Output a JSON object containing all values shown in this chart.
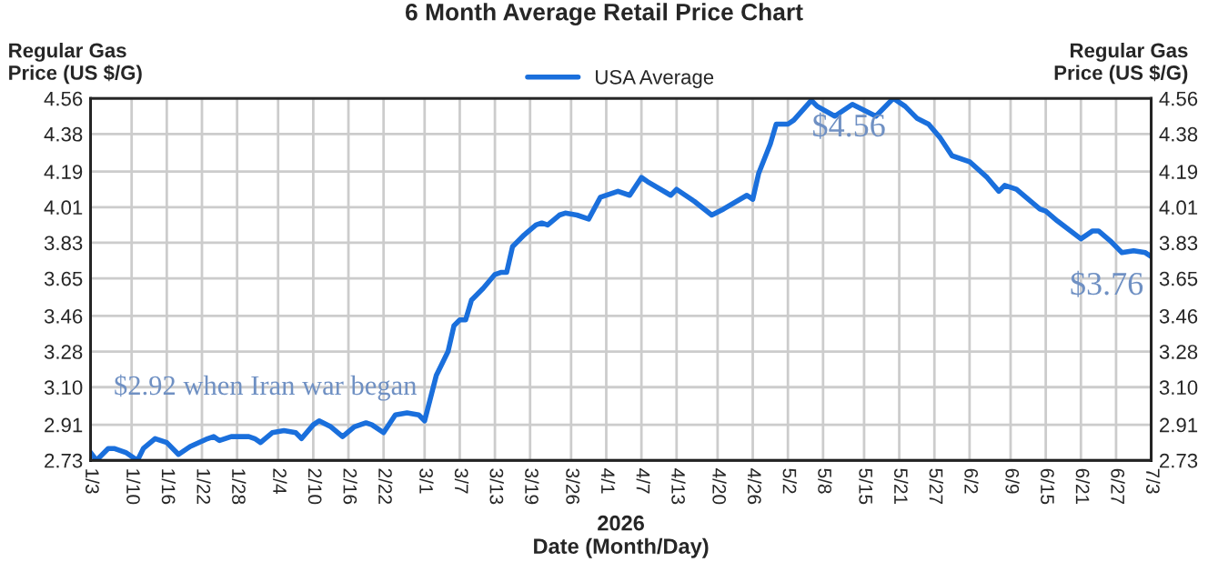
{
  "chart_data": {
    "type": "line",
    "title": "6 Month Average Retail Price Chart",
    "xlabel": "2026\nDate (Month/Day)",
    "ylabel": "Regular Gas\nPrice (US $/G)",
    "y2label": "Regular Gas\nPrice (US $/G)",
    "x": [
      "2026-01-03",
      "2026-01-04",
      "2026-01-06",
      "2026-01-07",
      "2026-01-09",
      "2026-01-11",
      "2026-01-12",
      "2026-01-14",
      "2026-01-16",
      "2026-01-18",
      "2026-01-20",
      "2026-01-23",
      "2026-01-24",
      "2026-01-25",
      "2026-01-27",
      "2026-01-30",
      "2026-01-31",
      "2026-02-01",
      "2026-02-03",
      "2026-02-05",
      "2026-02-07",
      "2026-02-08",
      "2026-02-10",
      "2026-02-11",
      "2026-02-13",
      "2026-02-15",
      "2026-02-17",
      "2026-02-19",
      "2026-02-20",
      "2026-02-22",
      "2026-02-24",
      "2026-02-26",
      "2026-02-28",
      "2026-03-01",
      "2026-03-03",
      "2026-03-05",
      "2026-03-06",
      "2026-03-07",
      "2026-03-08",
      "2026-03-09",
      "2026-03-11",
      "2026-03-13",
      "2026-03-14",
      "2026-03-15",
      "2026-03-16",
      "2026-03-18",
      "2026-03-20",
      "2026-03-21",
      "2026-03-22",
      "2026-03-24",
      "2026-03-25",
      "2026-03-27",
      "2026-03-29",
      "2026-03-31",
      "2026-04-03",
      "2026-04-05",
      "2026-04-07",
      "2026-04-08",
      "2026-04-12",
      "2026-04-13",
      "2026-04-16",
      "2026-04-19",
      "2026-04-21",
      "2026-04-25",
      "2026-04-26",
      "2026-04-27",
      "2026-04-29",
      "2026-04-30",
      "2026-05-02",
      "2026-05-03",
      "2026-05-06",
      "2026-05-07",
      "2026-05-10",
      "2026-05-13",
      "2026-05-17",
      "2026-05-20",
      "2026-05-22",
      "2026-05-24",
      "2026-05-26",
      "2026-05-28",
      "2026-05-30",
      "2026-06-02",
      "2026-06-05",
      "2026-06-07",
      "2026-06-08",
      "2026-06-10",
      "2026-06-14",
      "2026-06-15",
      "2026-06-17",
      "2026-06-21",
      "2026-06-23",
      "2026-06-24",
      "2026-06-26",
      "2026-06-28",
      "2026-06-30",
      "2026-07-02",
      "2026-07-03"
    ],
    "series": [
      {
        "name": "USA Average",
        "color": "#1a6fdc",
        "values": [
          2.77,
          2.73,
          2.79,
          2.79,
          2.77,
          2.73,
          2.79,
          2.84,
          2.82,
          2.76,
          2.8,
          2.84,
          2.85,
          2.83,
          2.85,
          2.85,
          2.84,
          2.82,
          2.87,
          2.88,
          2.87,
          2.84,
          2.91,
          2.93,
          2.9,
          2.85,
          2.9,
          2.92,
          2.91,
          2.87,
          2.96,
          2.97,
          2.96,
          2.93,
          3.16,
          3.28,
          3.41,
          3.44,
          3.44,
          3.54,
          3.6,
          3.67,
          3.68,
          3.68,
          3.81,
          3.87,
          3.92,
          3.93,
          3.92,
          3.97,
          3.98,
          3.97,
          3.95,
          4.06,
          4.09,
          4.07,
          4.16,
          4.14,
          4.07,
          4.1,
          4.04,
          3.97,
          4.0,
          4.07,
          4.05,
          4.18,
          4.33,
          4.43,
          4.43,
          4.45,
          4.55,
          4.52,
          4.47,
          4.53,
          4.47,
          4.56,
          4.52,
          4.46,
          4.43,
          4.36,
          4.27,
          4.24,
          4.16,
          4.09,
          4.12,
          4.1,
          4.0,
          3.99,
          3.94,
          3.85,
          3.89,
          3.89,
          3.84,
          3.78,
          3.79,
          3.78,
          3.76
        ]
      }
    ],
    "xlim": [
      "2026-01-03",
      "2026-07-03"
    ],
    "xticks": [
      {
        "value": "2026-01-03",
        "label": "1/3"
      },
      {
        "value": "2026-01-10",
        "label": "1/10"
      },
      {
        "value": "2026-01-16",
        "label": "1/16"
      },
      {
        "value": "2026-01-22",
        "label": "1/22"
      },
      {
        "value": "2026-01-28",
        "label": "1/28"
      },
      {
        "value": "2026-02-04",
        "label": "2/4"
      },
      {
        "value": "2026-02-10",
        "label": "2/10"
      },
      {
        "value": "2026-02-16",
        "label": "2/16"
      },
      {
        "value": "2026-02-22",
        "label": "2/22"
      },
      {
        "value": "2026-03-01",
        "label": "3/1"
      },
      {
        "value": "2026-03-07",
        "label": "3/7"
      },
      {
        "value": "2026-03-13",
        "label": "3/13"
      },
      {
        "value": "2026-03-19",
        "label": "3/19"
      },
      {
        "value": "2026-03-26",
        "label": "3/26"
      },
      {
        "value": "2026-04-01",
        "label": "4/1"
      },
      {
        "value": "2026-04-07",
        "label": "4/7"
      },
      {
        "value": "2026-04-13",
        "label": "4/13"
      },
      {
        "value": "2026-04-20",
        "label": "4/20"
      },
      {
        "value": "2026-04-26",
        "label": "4/26"
      },
      {
        "value": "2026-05-02",
        "label": "5/2"
      },
      {
        "value": "2026-05-08",
        "label": "5/8"
      },
      {
        "value": "2026-05-15",
        "label": "5/15"
      },
      {
        "value": "2026-05-21",
        "label": "5/21"
      },
      {
        "value": "2026-05-27",
        "label": "5/27"
      },
      {
        "value": "2026-06-02",
        "label": "6/2"
      },
      {
        "value": "2026-06-09",
        "label": "6/9"
      },
      {
        "value": "2026-06-15",
        "label": "6/15"
      },
      {
        "value": "2026-06-21",
        "label": "6/21"
      },
      {
        "value": "2026-06-27",
        "label": "6/27"
      },
      {
        "value": "2026-07-03",
        "label": "7/3"
      }
    ],
    "ylim": [
      2.73,
      4.56
    ],
    "yticks": [
      {
        "value": 2.73,
        "label": "2.73"
      },
      {
        "value": 2.91,
        "label": "2.91"
      },
      {
        "value": 3.1,
        "label": "3.10"
      },
      {
        "value": 3.28,
        "label": "3.28"
      },
      {
        "value": 3.46,
        "label": "3.46"
      },
      {
        "value": 3.65,
        "label": "3.65"
      },
      {
        "value": 3.83,
        "label": "3.83"
      },
      {
        "value": 4.01,
        "label": "4.01"
      },
      {
        "value": 4.19,
        "label": "4.19"
      },
      {
        "value": 4.38,
        "label": "4.38"
      },
      {
        "value": 4.56,
        "label": "4.56"
      }
    ],
    "y2lim": [
      2.73,
      4.56
    ],
    "y2ticks": [
      {
        "value": 2.73,
        "label": "2.73"
      },
      {
        "value": 2.91,
        "label": "2.91"
      },
      {
        "value": 3.1,
        "label": "3.10"
      },
      {
        "value": 3.28,
        "label": "3.28"
      },
      {
        "value": 3.46,
        "label": "3.46"
      },
      {
        "value": 3.65,
        "label": "3.65"
      },
      {
        "value": 3.83,
        "label": "3.83"
      },
      {
        "value": 4.01,
        "label": "4.01"
      },
      {
        "value": 4.19,
        "label": "4.19"
      },
      {
        "value": 4.38,
        "label": "4.38"
      },
      {
        "value": 4.56,
        "label": "4.56"
      }
    ],
    "annotations": [
      {
        "text": "$2.92 when Iran war began",
        "x": "2026-03-01",
        "y": 2.93
      },
      {
        "text": "$4.56",
        "x": "2026-05-20",
        "y": 4.56
      },
      {
        "text": "$3.76",
        "x": "2026-07-03",
        "y": 3.76
      }
    ],
    "grid": true,
    "legend": "top",
    "marker": "none",
    "line_style": "solid"
  }
}
